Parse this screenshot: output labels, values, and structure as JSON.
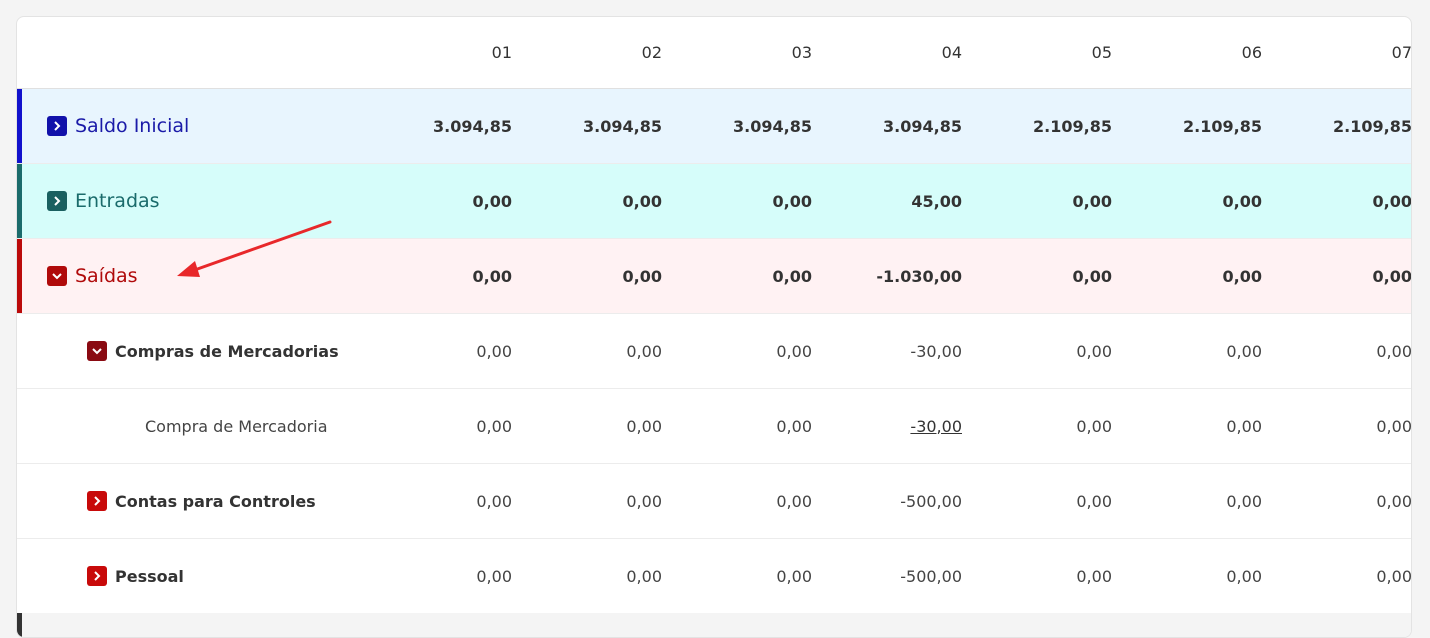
{
  "columns": [
    "01",
    "02",
    "03",
    "04",
    "05",
    "06",
    "07"
  ],
  "colors": {
    "saldo_bg": "#e8f5fe",
    "saldo_accent": "#1111cc",
    "saldo_text": "#1a1aa8",
    "entradas_bg": "#d6fdfa",
    "entradas_accent": "#1a6b6b",
    "entradas_text": "#1a6b6b",
    "saidas_bg": "#fff2f3",
    "saidas_accent": "#bb0a0a",
    "saidas_text": "#b00a0a",
    "arrow": "#e8282a"
  },
  "rows": [
    {
      "label": "Saldo Inicial",
      "toggle_icon": "chevron-right-icon",
      "values": [
        "3.094,85",
        "3.094,85",
        "3.094,85",
        "3.094,85",
        "2.109,85",
        "2.109,85",
        "2.109,85"
      ]
    },
    {
      "label": "Entradas",
      "toggle_icon": "chevron-right-icon",
      "values": [
        "0,00",
        "0,00",
        "0,00",
        "45,00",
        "0,00",
        "0,00",
        "0,00"
      ]
    },
    {
      "label": "Saídas",
      "toggle_icon": "chevron-down-icon",
      "values": [
        "0,00",
        "0,00",
        "0,00",
        "-1.030,00",
        "0,00",
        "0,00",
        "0,00"
      ]
    },
    {
      "label": "Compras de Mercadorias",
      "toggle_icon": "chevron-down-icon",
      "values": [
        "0,00",
        "0,00",
        "0,00",
        "-30,00",
        "0,00",
        "0,00",
        "0,00"
      ]
    },
    {
      "label": "Compra de Mercadoria",
      "values": [
        "0,00",
        "0,00",
        "0,00",
        "-30,00",
        "0,00",
        "0,00",
        "0,00"
      ]
    },
    {
      "label": "Contas para Controles",
      "toggle_icon": "chevron-right-icon",
      "values": [
        "0,00",
        "0,00",
        "0,00",
        "-500,00",
        "0,00",
        "0,00",
        "0,00"
      ]
    },
    {
      "label": "Pessoal",
      "toggle_icon": "chevron-right-icon",
      "values": [
        "0,00",
        "0,00",
        "0,00",
        "-500,00",
        "0,00",
        "0,00",
        "0,00"
      ]
    }
  ]
}
